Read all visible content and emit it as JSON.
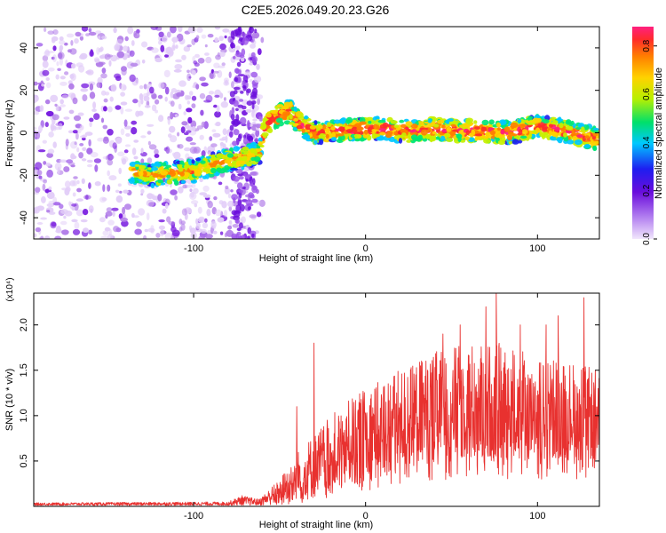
{
  "title": "C2E5.2026.049.20.23.G26",
  "chart_data": [
    {
      "type": "heatmap",
      "xlabel": "Height of straight line (km)",
      "ylabel": "Frequency (Hz)",
      "xlim": [
        -193,
        136
      ],
      "ylim": [
        -50,
        50
      ],
      "x_ticks": [
        -100,
        0,
        100
      ],
      "y_ticks": [
        -40,
        -20,
        0,
        20,
        40
      ],
      "grid": false,
      "colorbar": {
        "label": "Normalized spectral amplitude",
        "range": [
          0.0,
          0.88
        ],
        "ticks": [
          "0.0",
          "0.2",
          "0.4",
          "0.6",
          "0.8"
        ],
        "colors": [
          "#e8d6fa",
          "#8a2be2",
          "#1e1ef0",
          "#00c8ff",
          "#00e676",
          "#c8f000",
          "#ffd200",
          "#ff7f00",
          "#ff2b2b",
          "#ff2080"
        ]
      },
      "ridge": [
        {
          "x": -136,
          "y": -18
        },
        {
          "x": -125,
          "y": -20
        },
        {
          "x": -115,
          "y": -19
        },
        {
          "x": -100,
          "y": -18
        },
        {
          "x": -90,
          "y": -15
        },
        {
          "x": -80,
          "y": -13
        },
        {
          "x": -70,
          "y": -11
        },
        {
          "x": -62,
          "y": -10
        },
        {
          "x": -58,
          "y": 4
        },
        {
          "x": -50,
          "y": 9
        },
        {
          "x": -44,
          "y": 10
        },
        {
          "x": -38,
          "y": 4
        },
        {
          "x": -30,
          "y": 0
        },
        {
          "x": -20,
          "y": 1
        },
        {
          "x": -10,
          "y": 1
        },
        {
          "x": 0,
          "y": 2
        },
        {
          "x": 10,
          "y": 2
        },
        {
          "x": 20,
          "y": 1
        },
        {
          "x": 30,
          "y": 1
        },
        {
          "x": 40,
          "y": 2
        },
        {
          "x": 50,
          "y": 1
        },
        {
          "x": 60,
          "y": 1
        },
        {
          "x": 70,
          "y": 1
        },
        {
          "x": 80,
          "y": 0
        },
        {
          "x": 90,
          "y": 1
        },
        {
          "x": 100,
          "y": 3
        },
        {
          "x": 110,
          "y": 2
        },
        {
          "x": 120,
          "y": 0
        },
        {
          "x": 130,
          "y": -2
        },
        {
          "x": 136,
          "y": -3
        }
      ],
      "noise_region_x": [
        -193,
        -60
      ]
    },
    {
      "type": "line",
      "xlabel": "Height of straight line (km)",
      "ylabel": "SNR (10 * v/v)",
      "y_multiplier": "(x10⁴)",
      "xlim": [
        -193,
        136
      ],
      "ylim": [
        0,
        2.35
      ],
      "x_ticks": [
        -100,
        0,
        100
      ],
      "y_ticks": [
        "0.5",
        "1.0",
        "1.5",
        "2.0"
      ],
      "grid": false,
      "series": [
        {
          "color": "#e8312f",
          "envelope_lower": [
            {
              "x": -193,
              "y": 0.01
            },
            {
              "x": -60,
              "y": 0.01
            },
            {
              "x": -45,
              "y": 0.03
            },
            {
              "x": -30,
              "y": 0.08
            },
            {
              "x": -10,
              "y": 0.2
            },
            {
              "x": 10,
              "y": 0.35
            },
            {
              "x": 30,
              "y": 0.45
            },
            {
              "x": 50,
              "y": 0.5
            },
            {
              "x": 70,
              "y": 0.5
            },
            {
              "x": 100,
              "y": 0.5
            },
            {
              "x": 136,
              "y": 0.5
            }
          ],
          "envelope_upper": [
            {
              "x": -193,
              "y": 0.04
            },
            {
              "x": -80,
              "y": 0.05
            },
            {
              "x": -72,
              "y": 0.12
            },
            {
              "x": -62,
              "y": 0.08
            },
            {
              "x": -50,
              "y": 0.3
            },
            {
              "x": -40,
              "y": 0.6
            },
            {
              "x": -30,
              "y": 0.8
            },
            {
              "x": -15,
              "y": 1.1
            },
            {
              "x": 0,
              "y": 1.3
            },
            {
              "x": 20,
              "y": 1.5
            },
            {
              "x": 40,
              "y": 1.7
            },
            {
              "x": 60,
              "y": 1.8
            },
            {
              "x": 80,
              "y": 1.8
            },
            {
              "x": 100,
              "y": 1.65
            },
            {
              "x": 120,
              "y": 1.6
            },
            {
              "x": 136,
              "y": 1.5
            }
          ],
          "spikes": [
            {
              "x": -30,
              "y": 1.8
            },
            {
              "x": -40,
              "y": 1.1
            },
            {
              "x": 45,
              "y": 1.9
            },
            {
              "x": 55,
              "y": 2.0
            },
            {
              "x": 70,
              "y": 2.2
            },
            {
              "x": 76,
              "y": 2.35
            },
            {
              "x": 90,
              "y": 2.0
            },
            {
              "x": 105,
              "y": 2.0
            },
            {
              "x": 112,
              "y": 2.1
            },
            {
              "x": 127,
              "y": 2.3
            }
          ]
        }
      ]
    }
  ]
}
